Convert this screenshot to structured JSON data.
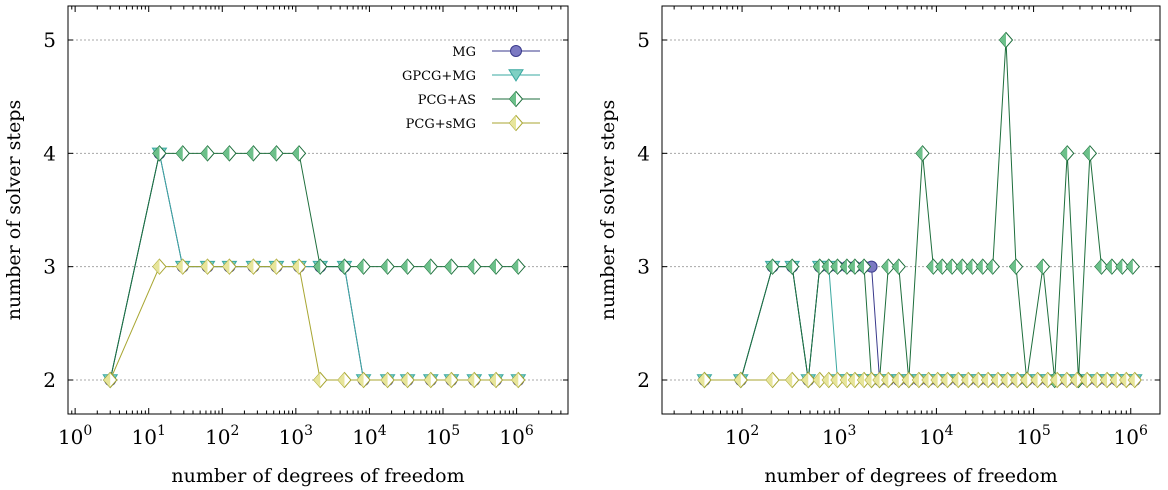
{
  "colors": {
    "MG": "#7b79c2",
    "GPCG+MG": "#7fd0c3",
    "PCG+AS": "#6cc08a",
    "PCG+sMG": "#e7e59a",
    "MG_line": "#3a3a8c",
    "GPCG+MG_line": "#3aa8a0",
    "PCG+AS_line": "#1e6e3c",
    "PCG+sMG_line": "#a8a632"
  },
  "chart_data": [
    {
      "type": "line",
      "xscale": "log",
      "xlabel": "number of degrees of freedom",
      "ylabel": "number of solver steps",
      "xlim": [
        0.8,
        5000000
      ],
      "ylim": [
        1.7,
        5.3
      ],
      "yticks": [
        2,
        3,
        4,
        5
      ],
      "ytick_labels": [
        "2",
        "3",
        "4",
        "5"
      ],
      "xticks": [
        1,
        10,
        100,
        1000,
        10000,
        100000,
        1000000
      ],
      "xtick_labels": [
        {
          "base": "10",
          "exp": "0"
        },
        {
          "base": "10",
          "exp": "1"
        },
        {
          "base": "10",
          "exp": "2"
        },
        {
          "base": "10",
          "exp": "3"
        },
        {
          "base": "10",
          "exp": "4"
        },
        {
          "base": "10",
          "exp": "5"
        },
        {
          "base": "10",
          "exp": "6"
        }
      ],
      "grid": "horizontal",
      "legend_position": "top-right",
      "series": [
        {
          "name": "MG",
          "marker": "circle",
          "x": [
            3,
            14,
            29,
            63,
            125,
            265,
            545,
            1105,
            2145,
            4577,
            8321,
            17665,
            33025,
            68225,
            130049,
            266113,
            525313,
            1054721
          ],
          "y": [
            2,
            4,
            3,
            3,
            3,
            3,
            3,
            3,
            3,
            3,
            2,
            2,
            2,
            2,
            2,
            2,
            2,
            2
          ]
        },
        {
          "name": "GPCG+MG",
          "marker": "triangle-down",
          "x": [
            3,
            14,
            29,
            63,
            125,
            265,
            545,
            1105,
            2145,
            4577,
            8321,
            17665,
            33025,
            68225,
            130049,
            266113,
            525313,
            1054721
          ],
          "y": [
            2,
            4,
            3,
            3,
            3,
            3,
            3,
            3,
            3,
            3,
            2,
            2,
            2,
            2,
            2,
            2,
            2,
            2
          ]
        },
        {
          "name": "PCG+AS",
          "marker": "diamond",
          "x": [
            3,
            14,
            29,
            63,
            125,
            265,
            545,
            1105,
            2145,
            4577,
            8321,
            17665,
            33025,
            68225,
            130049,
            266113,
            525313,
            1054721
          ],
          "y": [
            2,
            4,
            4,
            4,
            4,
            4,
            4,
            4,
            3,
            3,
            3,
            3,
            3,
            3,
            3,
            3,
            3,
            3
          ]
        },
        {
          "name": "PCG+sMG",
          "marker": "diamond",
          "x": [
            3,
            14,
            29,
            63,
            125,
            265,
            545,
            1105,
            2145,
            4577,
            8321,
            17665,
            33025,
            68225,
            130049,
            266113,
            525313,
            1054721
          ],
          "y": [
            2,
            3,
            3,
            3,
            3,
            3,
            3,
            3,
            2,
            2,
            2,
            2,
            2,
            2,
            2,
            2,
            2,
            2
          ]
        }
      ]
    },
    {
      "type": "line",
      "xscale": "log",
      "xlabel": "number of degrees of freedom",
      "ylabel": "number of solver steps",
      "xlim": [
        15,
        2000000
      ],
      "ylim": [
        1.7,
        5.3
      ],
      "yticks": [
        2,
        3,
        4,
        5
      ],
      "ytick_labels": [
        "2",
        "3",
        "4",
        "5"
      ],
      "xticks": [
        100,
        1000,
        10000,
        100000,
        1000000
      ],
      "xtick_labels": [
        {
          "base": "10",
          "exp": "2"
        },
        {
          "base": "10",
          "exp": "3"
        },
        {
          "base": "10",
          "exp": "4"
        },
        {
          "base": "10",
          "exp": "5"
        },
        {
          "base": "10",
          "exp": "6"
        }
      ],
      "grid": "horizontal",
      "legend_position": "none",
      "series": [
        {
          "name": "MG",
          "marker": "circle",
          "x": [
            41,
            97,
            206,
            328,
            480,
            630,
            780,
            960,
            1200,
            1450,
            1800,
            2150,
            2600,
            3200,
            4100,
            5200,
            6600,
            8300,
            10300,
            13000,
            16800,
            21300,
            27000,
            34000,
            43000,
            54000,
            68000,
            86000,
            110000,
            140000,
            175000,
            220000,
            280000,
            355000,
            450000,
            570000,
            720000,
            900000,
            1100000
          ],
          "y": [
            2,
            2,
            3,
            3,
            2,
            3,
            3,
            3,
            3,
            3,
            3,
            3,
            2,
            2,
            2,
            2,
            2,
            2,
            2,
            2,
            2,
            2,
            2,
            2,
            2,
            2,
            2,
            2,
            2,
            2,
            2,
            2,
            2,
            2,
            2,
            2,
            2,
            2,
            2
          ]
        },
        {
          "name": "GPCG+MG",
          "marker": "triangle-down",
          "x": [
            41,
            97,
            206,
            328,
            480,
            630,
            780,
            960,
            1200,
            1450,
            1800,
            2150,
            2600,
            3200,
            4100,
            5200,
            6600,
            8300,
            10300,
            13000,
            16800,
            21300,
            27000,
            34000,
            43000,
            54000,
            68000,
            86000,
            110000,
            140000,
            175000,
            220000,
            280000,
            355000,
            450000,
            570000,
            720000,
            900000,
            1100000
          ],
          "y": [
            2,
            2,
            3,
            3,
            2,
            3,
            3,
            2,
            2,
            2,
            2,
            2,
            2,
            2,
            2,
            2,
            2,
            2,
            2,
            2,
            2,
            2,
            2,
            2,
            2,
            2,
            2,
            2,
            2,
            2,
            2,
            2,
            2,
            2,
            2,
            2,
            2,
            2,
            2
          ]
        },
        {
          "name": "PCG+AS",
          "marker": "diamond",
          "x": [
            41,
            97,
            206,
            328,
            480,
            630,
            780,
            960,
            1200,
            1450,
            1800,
            2150,
            2600,
            3200,
            4100,
            5200,
            7200,
            9300,
            11500,
            14500,
            18500,
            23500,
            30000,
            38000,
            52000,
            66000,
            85000,
            125000,
            165000,
            222000,
            290000,
            380000,
            500000,
            640000,
            820000,
            1050000
          ],
          "y": [
            2,
            2,
            3,
            3,
            2,
            3,
            3,
            3,
            3,
            3,
            3,
            2,
            2,
            3,
            3,
            2,
            4,
            3,
            3,
            3,
            3,
            3,
            3,
            3,
            5,
            3,
            2,
            3,
            2,
            4,
            2,
            4,
            3,
            3,
            3,
            3
          ]
        },
        {
          "name": "PCG+sMG",
          "marker": "diamond",
          "x": [
            41,
            97,
            206,
            328,
            480,
            630,
            780,
            960,
            1200,
            1450,
            1800,
            2150,
            2600,
            3200,
            4100,
            5200,
            6600,
            8300,
            10300,
            13000,
            16800,
            21300,
            27000,
            34000,
            43000,
            54000,
            68000,
            86000,
            110000,
            140000,
            175000,
            220000,
            280000,
            355000,
            450000,
            570000,
            720000,
            900000,
            1100000
          ],
          "y": [
            2,
            2,
            2,
            2,
            2,
            2,
            2,
            2,
            2,
            2,
            2,
            2,
            2,
            2,
            2,
            2,
            2,
            2,
            2,
            2,
            2,
            2,
            2,
            2,
            2,
            2,
            2,
            2,
            2,
            2,
            2,
            2,
            2,
            2,
            2,
            2,
            2,
            2,
            2
          ]
        }
      ]
    }
  ]
}
